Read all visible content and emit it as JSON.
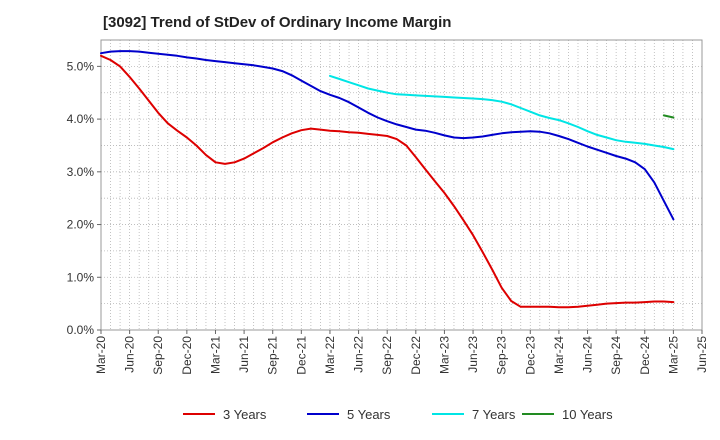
{
  "chart_data": {
    "type": "line",
    "title": "[3092]  Trend of StDev of Ordinary Income Margin",
    "xlabel": "",
    "ylabel": "",
    "x_ticks": [
      "Mar-20",
      "Jun-20",
      "Sep-20",
      "Dec-20",
      "Mar-21",
      "Jun-21",
      "Sep-21",
      "Dec-21",
      "Mar-22",
      "Jun-22",
      "Sep-22",
      "Dec-22",
      "Mar-23",
      "Jun-23",
      "Sep-23",
      "Dec-23",
      "Mar-24",
      "Jun-24",
      "Sep-24",
      "Dec-24",
      "Mar-25",
      "Jun-25"
    ],
    "y_ticks": [
      "0.0%",
      "1.0%",
      "2.0%",
      "3.0%",
      "4.0%",
      "5.0%"
    ],
    "ylim": [
      0,
      5.5
    ],
    "grid": true,
    "legend_position": "bottom",
    "colors": {
      "3 Years": "#dd0000",
      "5 Years": "#0000cc",
      "7 Years": "#00e5e5",
      "10 Years": "#228b22"
    },
    "series": [
      {
        "name": "3 Years",
        "x": [
          "Mar-20",
          "Apr-20",
          "May-20",
          "Jun-20",
          "Jul-20",
          "Aug-20",
          "Sep-20",
          "Oct-20",
          "Nov-20",
          "Dec-20",
          "Jan-21",
          "Feb-21",
          "Mar-21",
          "Apr-21",
          "May-21",
          "Jun-21",
          "Jul-21",
          "Aug-21",
          "Sep-21",
          "Oct-21",
          "Nov-21",
          "Dec-21",
          "Jan-22",
          "Feb-22",
          "Mar-22",
          "Apr-22",
          "May-22",
          "Jun-22",
          "Jul-22",
          "Aug-22",
          "Sep-22",
          "Oct-22",
          "Nov-22",
          "Dec-22",
          "Jan-23",
          "Feb-23",
          "Mar-23",
          "Apr-23",
          "May-23",
          "Jun-23",
          "Jul-23",
          "Aug-23",
          "Sep-23",
          "Oct-23",
          "Nov-23",
          "Dec-23",
          "Jan-24",
          "Feb-24",
          "Mar-24",
          "Apr-24",
          "May-24",
          "Jun-24",
          "Jul-24",
          "Aug-24",
          "Sep-24",
          "Oct-24",
          "Nov-24",
          "Dec-24",
          "Jan-25",
          "Feb-25",
          "Mar-25"
        ],
        "values": [
          5.2,
          5.12,
          5.0,
          4.8,
          4.58,
          4.35,
          4.12,
          3.92,
          3.78,
          3.65,
          3.5,
          3.32,
          3.18,
          3.15,
          3.18,
          3.25,
          3.35,
          3.45,
          3.56,
          3.65,
          3.73,
          3.79,
          3.82,
          3.8,
          3.78,
          3.77,
          3.75,
          3.74,
          3.72,
          3.7,
          3.68,
          3.62,
          3.5,
          3.28,
          3.05,
          2.82,
          2.6,
          2.35,
          2.08,
          1.8,
          1.48,
          1.15,
          0.8,
          0.55,
          0.44,
          0.44,
          0.44,
          0.44,
          0.43,
          0.43,
          0.44,
          0.46,
          0.48,
          0.5,
          0.51,
          0.52,
          0.52,
          0.53,
          0.54,
          0.54,
          0.53
        ]
      },
      {
        "name": "5 Years",
        "x": [
          "Mar-20",
          "Apr-20",
          "May-20",
          "Jun-20",
          "Jul-20",
          "Aug-20",
          "Sep-20",
          "Oct-20",
          "Nov-20",
          "Dec-20",
          "Jan-21",
          "Feb-21",
          "Mar-21",
          "Apr-21",
          "May-21",
          "Jun-21",
          "Jul-21",
          "Aug-21",
          "Sep-21",
          "Oct-21",
          "Nov-21",
          "Dec-21",
          "Jan-22",
          "Feb-22",
          "Mar-22",
          "Apr-22",
          "May-22",
          "Jun-22",
          "Jul-22",
          "Aug-22",
          "Sep-22",
          "Oct-22",
          "Nov-22",
          "Dec-22",
          "Jan-23",
          "Feb-23",
          "Mar-23",
          "Apr-23",
          "May-23",
          "Jun-23",
          "Jul-23",
          "Aug-23",
          "Sep-23",
          "Oct-23",
          "Nov-23",
          "Dec-23",
          "Jan-24",
          "Feb-24",
          "Mar-24",
          "Apr-24",
          "May-24",
          "Jun-24",
          "Jul-24",
          "Aug-24",
          "Sep-24",
          "Oct-24",
          "Nov-24",
          "Dec-24",
          "Jan-25",
          "Feb-25",
          "Mar-25"
        ],
        "values": [
          5.25,
          5.28,
          5.29,
          5.29,
          5.28,
          5.26,
          5.24,
          5.22,
          5.2,
          5.17,
          5.15,
          5.12,
          5.1,
          5.08,
          5.06,
          5.04,
          5.02,
          4.99,
          4.96,
          4.91,
          4.83,
          4.73,
          4.63,
          4.53,
          4.46,
          4.4,
          4.32,
          4.22,
          4.12,
          4.03,
          3.96,
          3.9,
          3.85,
          3.8,
          3.78,
          3.74,
          3.69,
          3.65,
          3.64,
          3.65,
          3.67,
          3.7,
          3.73,
          3.75,
          3.76,
          3.77,
          3.76,
          3.73,
          3.68,
          3.62,
          3.55,
          3.48,
          3.42,
          3.36,
          3.3,
          3.25,
          3.18,
          3.05,
          2.8,
          2.45,
          2.1
        ]
      },
      {
        "name": "7 Years",
        "x": [
          "Mar-22",
          "Apr-22",
          "May-22",
          "Jun-22",
          "Jul-22",
          "Aug-22",
          "Sep-22",
          "Oct-22",
          "Nov-22",
          "Dec-22",
          "Jan-23",
          "Feb-23",
          "Mar-23",
          "Apr-23",
          "May-23",
          "Jun-23",
          "Jul-23",
          "Aug-23",
          "Sep-23",
          "Oct-23",
          "Nov-23",
          "Dec-23",
          "Jan-24",
          "Feb-24",
          "Mar-24",
          "Apr-24",
          "May-24",
          "Jun-24",
          "Jul-24",
          "Aug-24",
          "Sep-24",
          "Oct-24",
          "Nov-24",
          "Dec-24",
          "Jan-25",
          "Feb-25",
          "Mar-25"
        ],
        "values": [
          4.82,
          4.76,
          4.7,
          4.64,
          4.58,
          4.54,
          4.5,
          4.47,
          4.46,
          4.45,
          4.44,
          4.43,
          4.42,
          4.41,
          4.4,
          4.39,
          4.38,
          4.36,
          4.33,
          4.28,
          4.21,
          4.14,
          4.07,
          4.02,
          3.98,
          3.92,
          3.85,
          3.77,
          3.7,
          3.65,
          3.6,
          3.57,
          3.55,
          3.53,
          3.5,
          3.47,
          3.43
        ]
      },
      {
        "name": "10 Years",
        "x": [
          "Feb-25",
          "Mar-25"
        ],
        "values": [
          4.07,
          4.03
        ]
      }
    ]
  }
}
